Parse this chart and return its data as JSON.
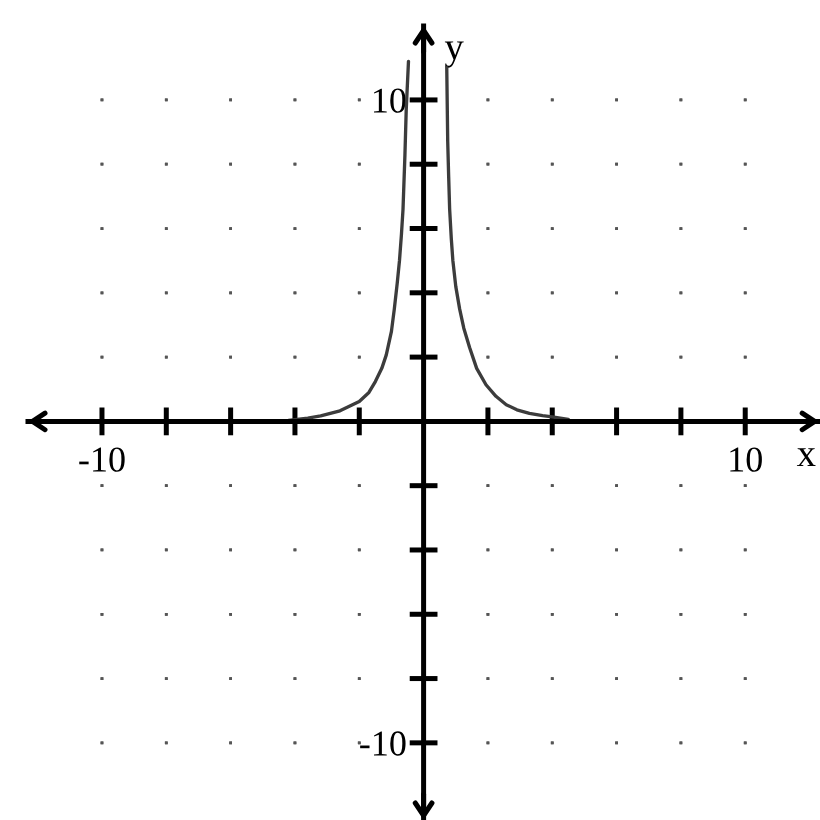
{
  "chart_data": {
    "type": "line",
    "xlabel": "x",
    "ylabel": "y",
    "xlim": [
      -12.3,
      12.3
    ],
    "ylim": [
      -12.4,
      12.3
    ],
    "xticks": [
      -10,
      {
        "value": -8,
        "label": null
      },
      {
        "value": -6,
        "label": null
      },
      {
        "value": -4,
        "label": null
      },
      {
        "value": -2,
        "label": null
      },
      {
        "value": 2,
        "label": null
      },
      {
        "value": 4,
        "label": null
      },
      {
        "value": 6,
        "label": null
      },
      {
        "value": 8,
        "label": null
      },
      10
    ],
    "yticks": [
      -10,
      {
        "value": -8,
        "label": null
      },
      {
        "value": -6,
        "label": null
      },
      {
        "value": -4,
        "label": null
      },
      {
        "value": -2,
        "label": null
      },
      {
        "value": 2,
        "label": null
      },
      {
        "value": 4,
        "label": null
      },
      {
        "value": 6,
        "label": null
      },
      {
        "value": 8,
        "label": null
      },
      10
    ],
    "grid": true,
    "series": [
      {
        "color": "#3c3c3c",
        "x": [
          -4.2,
          -3.6,
          -3.2,
          -2.6,
          -2.0,
          -1.7,
          -1.5,
          -1.3,
          -1.16,
          -1.0,
          -0.91,
          -0.82,
          -0.75,
          -0.69,
          -0.64,
          -0.58,
          -0.54,
          -0.47,
          0,
          0.72,
          0.75,
          0.78,
          0.81,
          0.86,
          0.91,
          1.0,
          1.12,
          1.25,
          1.43,
          1.65,
          1.94,
          2.25,
          2.57,
          2.9,
          3.29,
          3.7,
          4.0,
          4.5
        ],
        "values": [
          0.03,
          0.1,
          0.17,
          0.33,
          0.62,
          0.9,
          1.24,
          1.65,
          2.07,
          2.8,
          3.5,
          4.3,
          5.0,
          5.8,
          6.6,
          8.3,
          9.7,
          11.2,
          null,
          11.0,
          8.7,
          7.6,
          6.6,
          5.7,
          5.0,
          4.2,
          3.5,
          2.9,
          2.3,
          1.65,
          1.14,
          0.78,
          0.52,
          0.36,
          0.25,
          0.18,
          0.14,
          0.06
        ]
      }
    ]
  }
}
